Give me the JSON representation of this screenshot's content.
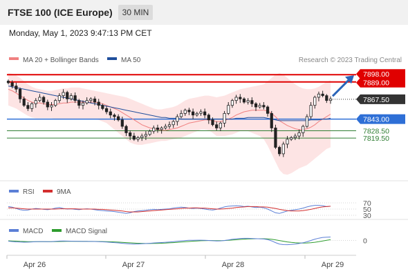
{
  "header": {
    "title": "FTSE 100 (ICE Europe)",
    "interval": "30 MIN"
  },
  "timestamp": "Monday, May 1, 2023 9:47:13 PM CET",
  "legend": {
    "ma20_bb": "MA 20 + Bollinger Bands",
    "ma50": "MA 50",
    "copyright": "Research © 2023 Trading Central"
  },
  "colors": {
    "ma20": "#f08080",
    "ma50": "#1f4e9c",
    "resistance": "#e00000",
    "support": "#2e6fd6",
    "target": "#2e7d32",
    "candle": "#222222",
    "rsi": "#5b7fd6",
    "rsi_ma": "#d32f2f",
    "macd": "#5b7fd6",
    "macd_signal": "#2e9c2e",
    "bollinger_fill": "#fde4e4",
    "pivot_arrow": "#2a64b8"
  },
  "chart_data": [
    {
      "type": "candlestick",
      "x_labels": [
        "Apr 26",
        "Apr 27",
        "Apr 28",
        "Apr 29"
      ],
      "price_range": [
        7770,
        7905
      ],
      "levels": [
        {
          "value": 7898.0,
          "label": "7898.00",
          "kind": "resistance"
        },
        {
          "value": 7889.0,
          "label": "7889.00",
          "kind": "resistance"
        },
        {
          "value": 7867.5,
          "label": "7867.50",
          "kind": "last"
        },
        {
          "value": 7843.0,
          "label": "7843.00",
          "kind": "pivot"
        },
        {
          "value": 7828.5,
          "label": "7828.50",
          "kind": "support"
        },
        {
          "value": 7819.5,
          "label": "7819.50",
          "kind": "support"
        }
      ],
      "close": [
        7888,
        7884,
        7880,
        7868,
        7860,
        7856,
        7862,
        7866,
        7870,
        7864,
        7858,
        7860,
        7866,
        7872,
        7876,
        7868,
        7872,
        7866,
        7860,
        7863,
        7866,
        7868,
        7864,
        7860,
        7856,
        7852,
        7848,
        7846,
        7842,
        7834,
        7826,
        7822,
        7818,
        7820,
        7822,
        7824,
        7828,
        7832,
        7830,
        7832,
        7834,
        7836,
        7840,
        7846,
        7850,
        7854,
        7852,
        7848,
        7850,
        7852,
        7848,
        7842,
        7836,
        7832,
        7838,
        7850,
        7860,
        7866,
        7870,
        7868,
        7864,
        7866,
        7862,
        7858,
        7860,
        7858,
        7850,
        7832,
        7808,
        7800,
        7812,
        7818,
        7820,
        7822,
        7826,
        7834,
        7846,
        7860,
        7870,
        7874,
        7872,
        7866,
        7868
      ],
      "ma20": [
        7880,
        7878,
        7875,
        7872,
        7869,
        7866,
        7864,
        7863,
        7863,
        7862,
        7861,
        7861,
        7861,
        7862,
        7863,
        7863,
        7864,
        7864,
        7864,
        7864,
        7864,
        7864,
        7864,
        7863,
        7862,
        7860,
        7858,
        7856,
        7854,
        7851,
        7848,
        7845,
        7842,
        7839,
        7836,
        7834,
        7832,
        7831,
        7830,
        7829,
        7829,
        7830,
        7831,
        7832,
        7834,
        7836,
        7838,
        7839,
        7840,
        7841,
        7842,
        7842,
        7841,
        7840,
        7840,
        7841,
        7843,
        7845,
        7848,
        7850,
        7852,
        7853,
        7854,
        7854,
        7854,
        7854,
        7853,
        7850,
        7846,
        7841,
        7838,
        7835,
        7833,
        7831,
        7830,
        7830,
        7831,
        7833,
        7836,
        7840,
        7843,
        7846,
        7849
      ],
      "ma50": [
        7884,
        7883,
        7882,
        7881,
        7880,
        7879,
        7878,
        7877,
        7876,
        7875,
        7874,
        7873,
        7872,
        7871,
        7870,
        7869,
        7868,
        7867,
        7866,
        7865,
        7864,
        7863,
        7862,
        7861,
        7860,
        7859,
        7858,
        7857,
        7856,
        7855,
        7854,
        7853,
        7852,
        7851,
        7850,
        7849,
        7848,
        7847,
        7846,
        7845,
        7845,
        7844,
        7844,
        7844,
        7843,
        7843,
        7843,
        7843,
        7843,
        7843,
        7843,
        7843,
        7843,
        7843,
        7843,
        7843,
        7843,
        7843,
        7844,
        7844,
        7844,
        7845,
        7845,
        7845,
        7845,
        7845,
        7844,
        7843,
        7842,
        7841,
        7841,
        7841,
        7841,
        7841,
        7841,
        7841,
        7841,
        7842,
        7842,
        7842,
        7843,
        7843,
        7844
      ],
      "bollinger_upper": [
        7900,
        7899,
        7897,
        7894,
        7890,
        7886,
        7883,
        7881,
        7880,
        7879,
        7878,
        7878,
        7879,
        7880,
        7881,
        7881,
        7882,
        7882,
        7882,
        7881,
        7880,
        7879,
        7878,
        7877,
        7876,
        7875,
        7874,
        7873,
        7872,
        7871,
        7870,
        7868,
        7866,
        7864,
        7862,
        7860,
        7858,
        7856,
        7855,
        7855,
        7856,
        7857,
        7858,
        7860,
        7863,
        7866,
        7868,
        7869,
        7870,
        7871,
        7872,
        7872,
        7871,
        7870,
        7871,
        7872,
        7874,
        7876,
        7878,
        7880,
        7881,
        7882,
        7883,
        7884,
        7885,
        7886,
        7890,
        7894,
        7898,
        7900,
        7898,
        7894,
        7890,
        7886,
        7883,
        7881,
        7880,
        7880,
        7881,
        7883,
        7886,
        7889,
        7891
      ],
      "bollinger_lower": [
        7860,
        7858,
        7856,
        7853,
        7850,
        7847,
        7845,
        7844,
        7844,
        7844,
        7844,
        7844,
        7843,
        7843,
        7843,
        7843,
        7843,
        7843,
        7843,
        7843,
        7843,
        7843,
        7843,
        7842,
        7840,
        7838,
        7834,
        7830,
        7826,
        7822,
        7818,
        7814,
        7812,
        7811,
        7811,
        7812,
        7813,
        7814,
        7815,
        7816,
        7816,
        7817,
        7818,
        7819,
        7820,
        7822,
        7824,
        7826,
        7828,
        7830,
        7830,
        7829,
        7826,
        7822,
        7822,
        7822,
        7823,
        7824,
        7826,
        7828,
        7828,
        7828,
        7826,
        7824,
        7822,
        7818,
        7810,
        7800,
        7790,
        7780,
        7775,
        7774,
        7776,
        7779,
        7782,
        7784,
        7786,
        7790,
        7794,
        7798,
        7802,
        7806,
        7808
      ]
    },
    {
      "type": "line",
      "name": "RSI",
      "series": [
        {
          "name": "RSI"
        },
        {
          "name": "9MA"
        }
      ],
      "y_ticks": [
        "70",
        "50",
        "30"
      ],
      "ylim": [
        30,
        70
      ],
      "rsi": [
        58,
        56,
        52,
        48,
        46,
        47,
        50,
        52,
        51,
        49,
        48,
        50,
        53,
        55,
        52,
        50,
        51,
        49,
        48,
        50,
        51,
        50,
        48,
        46,
        45,
        44,
        43,
        42,
        40,
        38,
        36,
        38,
        42,
        44,
        45,
        46,
        48,
        49,
        48,
        49,
        50,
        51,
        53,
        55,
        56,
        55,
        53,
        52,
        53,
        52,
        50,
        48,
        47,
        49,
        53,
        57,
        59,
        60,
        61,
        60,
        58,
        59,
        57,
        55,
        56,
        54,
        50,
        44,
        38,
        36,
        40,
        44,
        46,
        48,
        50,
        53,
        57,
        60,
        62,
        62,
        61,
        58,
        59
      ],
      "rsi_ma": [
        54,
        54,
        53,
        52,
        51,
        50,
        50,
        50,
        50,
        50,
        50,
        50,
        50,
        51,
        51,
        51,
        51,
        51,
        50,
        50,
        50,
        50,
        50,
        49,
        49,
        48,
        47,
        46,
        45,
        44,
        42,
        41,
        41,
        41,
        42,
        43,
        44,
        45,
        46,
        47,
        48,
        49,
        50,
        51,
        52,
        53,
        53,
        54,
        54,
        53,
        53,
        52,
        51,
        50,
        50,
        51,
        52,
        53,
        55,
        56,
        57,
        58,
        58,
        58,
        57,
        57,
        56,
        54,
        52,
        49,
        47,
        45,
        44,
        44,
        44,
        45,
        47,
        49,
        52,
        55,
        57,
        58,
        59
      ]
    },
    {
      "type": "line",
      "name": "MACD",
      "series": [
        {
          "name": "MACD"
        },
        {
          "name": "MACD Signal"
        }
      ],
      "y_ticks": [
        "0"
      ],
      "ylim": [
        -12,
        12
      ],
      "macd": [
        -1,
        -1.5,
        -2,
        -2.2,
        -2.4,
        -2.3,
        -2,
        -1.7,
        -1.5,
        -1.5,
        -1.6,
        -1.5,
        -1.2,
        -0.9,
        -0.8,
        -0.9,
        -1,
        -1.1,
        -1.2,
        -1.3,
        -1.3,
        -1.3,
        -1.4,
        -1.6,
        -1.9,
        -2.2,
        -2.6,
        -3,
        -3.4,
        -3.9,
        -4.4,
        -4.8,
        -5,
        -4.9,
        -4.6,
        -4.3,
        -3.9,
        -3.5,
        -3.2,
        -2.9,
        -2.5,
        -2.1,
        -1.6,
        -1.1,
        -0.6,
        -0.1,
        0.2,
        0.3,
        0.4,
        0.4,
        0.3,
        0,
        -0.4,
        -0.7,
        -0.6,
        0,
        0.8,
        1.6,
        2.3,
        2.8,
        3,
        3,
        2.8,
        2.5,
        2.3,
        2,
        1.2,
        -0.6,
        -3,
        -5,
        -5.8,
        -5.9,
        -5.6,
        -5,
        -4.2,
        -3.2,
        -1.8,
        0,
        1.8,
        3.2,
        4.2,
        4.6,
        4.8
      ],
      "signal": [
        -0.5,
        -0.7,
        -0.9,
        -1.2,
        -1.4,
        -1.6,
        -1.7,
        -1.7,
        -1.7,
        -1.7,
        -1.7,
        -1.6,
        -1.5,
        -1.4,
        -1.3,
        -1.2,
        -1.2,
        -1.2,
        -1.2,
        -1.2,
        -1.2,
        -1.3,
        -1.3,
        -1.4,
        -1.5,
        -1.6,
        -1.8,
        -2,
        -2.3,
        -2.6,
        -3,
        -3.3,
        -3.6,
        -3.9,
        -4.1,
        -4.2,
        -4.2,
        -4.1,
        -4,
        -3.8,
        -3.6,
        -3.3,
        -3,
        -2.6,
        -2.2,
        -1.8,
        -1.4,
        -1,
        -0.7,
        -0.4,
        -0.2,
        -0.1,
        -0.1,
        -0.2,
        -0.2,
        -0.1,
        0.2,
        0.6,
        1,
        1.4,
        1.8,
        2.1,
        2.3,
        2.4,
        2.4,
        2.4,
        2.2,
        1.7,
        0.9,
        -0.1,
        -1.1,
        -2,
        -2.7,
        -3.2,
        -3.5,
        -3.6,
        -3.5,
        -3.1,
        -2.5,
        -1.7,
        -0.8,
        0.2,
        1.1
      ]
    }
  ]
}
